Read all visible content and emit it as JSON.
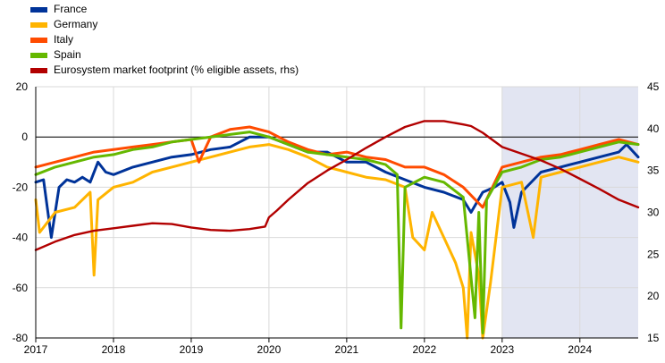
{
  "chart_data": {
    "type": "line",
    "title": "",
    "xlabel": "",
    "ylabel": "",
    "x_ticks": [
      "2017",
      "2018",
      "2019",
      "2020",
      "2021",
      "2022",
      "2023",
      "2024"
    ],
    "x_range": [
      2017.0,
      2024.75
    ],
    "y_left_range": [
      -80,
      20
    ],
    "y_left_ticks": [
      "20",
      "0",
      "-20",
      "-40",
      "-60",
      "-80"
    ],
    "y_right_range": [
      15,
      45
    ],
    "y_right_ticks": [
      "45",
      "40",
      "35",
      "30",
      "25",
      "20",
      "15"
    ],
    "shaded_region": [
      2023.0,
      2024.75
    ],
    "zero_line": 0,
    "legend_position": "top-left",
    "series": [
      {
        "name": "France",
        "color": "#003399",
        "axis": "left",
        "x": [
          2017.0,
          2017.1,
          2017.2,
          2017.3,
          2017.4,
          2017.5,
          2017.6,
          2017.7,
          2017.8,
          2017.9,
          2018.0,
          2018.25,
          2018.5,
          2018.75,
          2019.0,
          2019.25,
          2019.5,
          2019.75,
          2020.0,
          2020.25,
          2020.5,
          2020.75,
          2021.0,
          2021.25,
          2021.5,
          2021.75,
          2022.0,
          2022.25,
          2022.5,
          2022.6,
          2022.75,
          2022.9,
          2023.0,
          2023.1,
          2023.15,
          2023.25,
          2023.5,
          2023.75,
          2024.0,
          2024.25,
          2024.5,
          2024.6,
          2024.75
        ],
        "y": [
          -18,
          -17,
          -40,
          -20,
          -17,
          -18,
          -16,
          -18,
          -10,
          -14,
          -15,
          -12,
          -10,
          -8,
          -7,
          -5,
          -4,
          0,
          0,
          -3,
          -6,
          -6,
          -10,
          -10,
          -14,
          -17,
          -20,
          -22,
          -25,
          -30,
          -22,
          -20,
          -18,
          -26,
          -36,
          -22,
          -14,
          -12,
          -10,
          -8,
          -6,
          -3,
          -8
        ]
      },
      {
        "name": "Germany",
        "color": "#ffb400",
        "axis": "left",
        "x": [
          2017.0,
          2017.05,
          2017.25,
          2017.5,
          2017.7,
          2017.75,
          2017.8,
          2018.0,
          2018.25,
          2018.5,
          2018.75,
          2019.0,
          2019.25,
          2019.5,
          2019.75,
          2020.0,
          2020.25,
          2020.5,
          2020.75,
          2021.0,
          2021.25,
          2021.5,
          2021.75,
          2021.85,
          2022.0,
          2022.1,
          2022.25,
          2022.4,
          2022.5,
          2022.55,
          2022.6,
          2022.7,
          2022.75,
          2022.85,
          2023.0,
          2023.25,
          2023.4,
          2023.5,
          2023.75,
          2024.0,
          2024.25,
          2024.5,
          2024.75
        ],
        "y": [
          -25,
          -38,
          -30,
          -28,
          -22,
          -55,
          -25,
          -20,
          -18,
          -14,
          -12,
          -10,
          -8,
          -6,
          -4,
          -3,
          -5,
          -8,
          -12,
          -14,
          -16,
          -17,
          -20,
          -40,
          -45,
          -30,
          -40,
          -50,
          -60,
          -80,
          -38,
          -55,
          -80,
          -58,
          -20,
          -18,
          -40,
          -16,
          -14,
          -12,
          -10,
          -8,
          -10
        ]
      },
      {
        "name": "Italy",
        "color": "#ff4b00",
        "axis": "left",
        "x": [
          2017.0,
          2017.25,
          2017.5,
          2017.75,
          2018.0,
          2018.25,
          2018.5,
          2018.75,
          2019.0,
          2019.1,
          2019.25,
          2019.5,
          2019.75,
          2020.0,
          2020.25,
          2020.5,
          2020.75,
          2021.0,
          2021.25,
          2021.5,
          2021.75,
          2022.0,
          2022.25,
          2022.5,
          2022.75,
          2023.0,
          2023.25,
          2023.5,
          2023.75,
          2024.0,
          2024.25,
          2024.5,
          2024.75
        ],
        "y": [
          -12,
          -10,
          -8,
          -6,
          -5,
          -4,
          -3,
          -2,
          -1,
          -10,
          0,
          3,
          4,
          2,
          -2,
          -5,
          -7,
          -6,
          -8,
          -9,
          -12,
          -12,
          -15,
          -20,
          -28,
          -12,
          -10,
          -8,
          -7,
          -5,
          -3,
          -1,
          -3
        ]
      },
      {
        "name": "Spain",
        "color": "#65b800",
        "axis": "left",
        "x": [
          2017.0,
          2017.25,
          2017.5,
          2017.75,
          2018.0,
          2018.25,
          2018.5,
          2018.75,
          2019.0,
          2019.25,
          2019.5,
          2019.75,
          2020.0,
          2020.25,
          2020.5,
          2020.75,
          2021.0,
          2021.25,
          2021.5,
          2021.65,
          2021.7,
          2021.75,
          2022.0,
          2022.25,
          2022.5,
          2022.65,
          2022.7,
          2022.75,
          2022.8,
          2023.0,
          2023.25,
          2023.5,
          2023.75,
          2024.0,
          2024.25,
          2024.5,
          2024.75
        ],
        "y": [
          -15,
          -12,
          -10,
          -8,
          -7,
          -5,
          -4,
          -2,
          -1,
          0,
          1,
          2,
          0,
          -3,
          -6,
          -7,
          -8,
          -9,
          -11,
          -15,
          -76,
          -20,
          -16,
          -18,
          -24,
          -72,
          -30,
          -78,
          -25,
          -14,
          -12,
          -9,
          -8,
          -6,
          -4,
          -2,
          -3
        ]
      },
      {
        "name": "Eurosystem market footprint (% eligible assets, rhs)",
        "color": "#b20000",
        "axis": "right",
        "x": [
          2017.0,
          2017.25,
          2017.5,
          2017.75,
          2018.0,
          2018.25,
          2018.5,
          2018.75,
          2019.0,
          2019.25,
          2019.5,
          2019.75,
          2019.95,
          2020.0,
          2020.1,
          2020.25,
          2020.5,
          2020.75,
          2021.0,
          2021.25,
          2021.5,
          2021.75,
          2022.0,
          2022.25,
          2022.5,
          2022.6,
          2022.75,
          2023.0,
          2023.25,
          2023.5,
          2023.75,
          2024.0,
          2024.25,
          2024.5,
          2024.75
        ],
        "y": [
          25.5,
          26.5,
          27.3,
          27.8,
          28.1,
          28.4,
          28.7,
          28.6,
          28.2,
          27.9,
          27.8,
          28.0,
          28.3,
          29.4,
          30.2,
          31.5,
          33.5,
          35.0,
          36.3,
          37.7,
          39.0,
          40.2,
          40.9,
          40.9,
          40.5,
          40.3,
          39.5,
          37.8,
          37.0,
          36.2,
          35.2,
          34.0,
          32.8,
          31.5,
          30.6
        ]
      }
    ]
  }
}
